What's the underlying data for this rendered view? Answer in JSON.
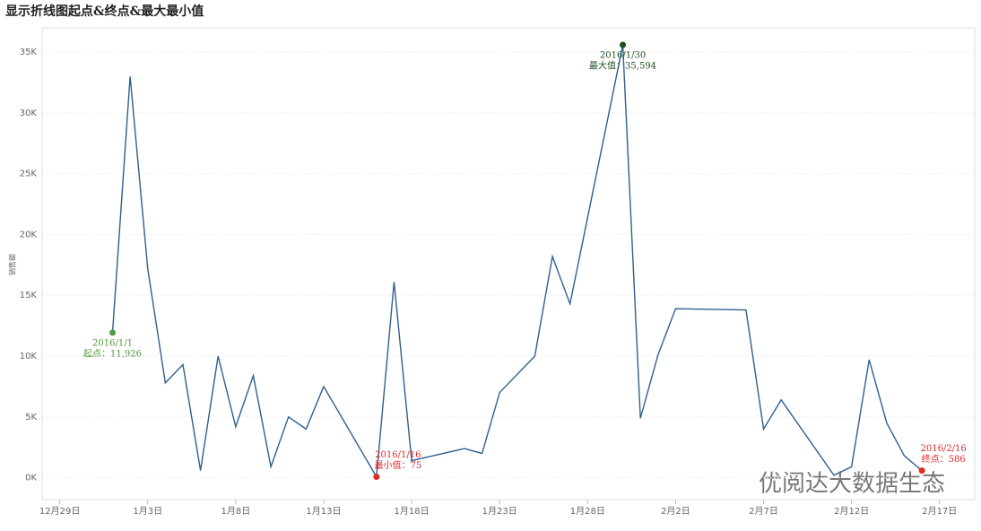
{
  "chart_data": {
    "type": "line",
    "title": "显示折线图起点&终点&最大最小值",
    "y_label": "销售额",
    "x": [
      "2016/1/1",
      "2016/1/2",
      "2016/1/3",
      "2016/1/4",
      "2016/1/5",
      "2016/1/6",
      "2016/1/7",
      "2016/1/8",
      "2016/1/9",
      "2016/1/10",
      "2016/1/11",
      "2016/1/12",
      "2016/1/13",
      "2016/1/16",
      "2016/1/17",
      "2016/1/18",
      "2016/1/21",
      "2016/1/22",
      "2016/1/23",
      "2016/1/25",
      "2016/1/26",
      "2016/1/27",
      "2016/1/30",
      "2016/1/31",
      "2016/2/1",
      "2016/2/2",
      "2016/2/6",
      "2016/2/7",
      "2016/2/8",
      "2016/2/11",
      "2016/2/12",
      "2016/2/13",
      "2016/2/14",
      "2016/2/15",
      "2016/2/16"
    ],
    "series": [
      {
        "name": "销售额",
        "color": "#2f5f8f",
        "values": [
          11926,
          33000,
          17200,
          7800,
          9300,
          600,
          10000,
          4200,
          8400,
          900,
          5000,
          4000,
          7500,
          75,
          16100,
          1400,
          2400,
          2000,
          7000,
          10000,
          18200,
          14300,
          35594,
          4900,
          10100,
          13900,
          13800,
          4000,
          6400,
          200,
          900,
          9700,
          4500,
          1800,
          586
        ]
      }
    ],
    "xlim": [
      "2015/12/28",
      "2016/2/19"
    ],
    "xticks": [
      {
        "value": "2015/12/29",
        "label": "12月29日"
      },
      {
        "value": "2016/1/3",
        "label": "1月3日"
      },
      {
        "value": "2016/1/8",
        "label": "1月8日"
      },
      {
        "value": "2016/1/13",
        "label": "1月13日"
      },
      {
        "value": "2016/1/18",
        "label": "1月18日"
      },
      {
        "value": "2016/1/23",
        "label": "1月23日"
      },
      {
        "value": "2016/1/28",
        "label": "1月28日"
      },
      {
        "value": "2016/2/2",
        "label": "2月2日"
      },
      {
        "value": "2016/2/7",
        "label": "2月7日"
      },
      {
        "value": "2016/2/12",
        "label": "2月12日"
      },
      {
        "value": "2016/2/17",
        "label": "2月17日"
      }
    ],
    "ylim": [
      -1800,
      37000
    ],
    "yticks": [
      {
        "value": 0,
        "label": "0K"
      },
      {
        "value": 5000,
        "label": "5K"
      },
      {
        "value": 10000,
        "label": "10K"
      },
      {
        "value": 15000,
        "label": "15K"
      },
      {
        "value": 20000,
        "label": "20K"
      },
      {
        "value": 25000,
        "label": "25K"
      },
      {
        "value": 30000,
        "label": "30K"
      },
      {
        "value": 35000,
        "label": "35K"
      }
    ],
    "grid": true,
    "annotations": [
      {
        "x": "2016/1/1",
        "text": "起点：11,926",
        "color": "#4f9a3f",
        "position": "below"
      },
      {
        "x": "2016/1/30",
        "text": "最大值：35,594",
        "color": "#1f4f1f",
        "position": "below"
      },
      {
        "x": "2016/1/16",
        "text": "最小值：75",
        "color": "#e02828",
        "position": "above"
      },
      {
        "x": "2016/2/16",
        "text": "终点：586",
        "color": "#e02828",
        "position": "above"
      }
    ],
    "watermark": "优阅达大数据生态"
  }
}
